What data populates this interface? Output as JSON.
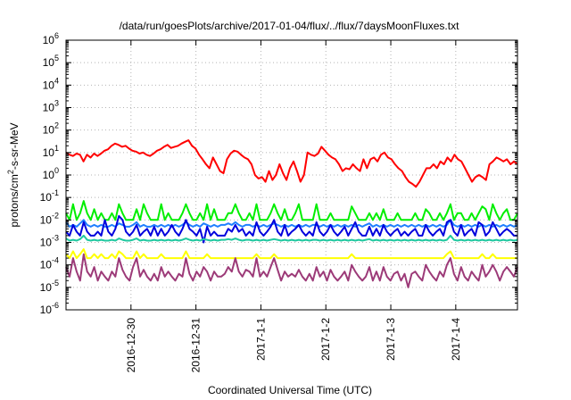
{
  "chart_data": {
    "type": "line",
    "title": "/data/run/goesPlots/archive/2017-01-04/flux/../flux/7daysMoonFluxes.txt",
    "xlabel": "Coordinated Universal Time (UTC)",
    "ylabel": "protons/cm²-s-sr-MeV",
    "ylabel_parts": {
      "pre": "protons/cm",
      "sup": "2",
      "post": "-s-sr-MeV"
    },
    "y_scale": "log",
    "ylim_exponent": [
      -6,
      6
    ],
    "y_ticks": [
      {
        "base": "10",
        "exp": "6"
      },
      {
        "base": "10",
        "exp": "5"
      },
      {
        "base": "10",
        "exp": "4"
      },
      {
        "base": "10",
        "exp": "3"
      },
      {
        "base": "10",
        "exp": "2"
      },
      {
        "base": "10",
        "exp": "1"
      },
      {
        "base": "10",
        "exp": "0"
      },
      {
        "base": "10",
        "exp": "-1"
      },
      {
        "base": "10",
        "exp": "-2"
      },
      {
        "base": "10",
        "exp": "-3"
      },
      {
        "base": "10",
        "exp": "-4"
      },
      {
        "base": "10",
        "exp": "-5"
      },
      {
        "base": "10",
        "exp": "-6"
      }
    ],
    "x_ticks": [
      "2016-12-30",
      "2016-12-31",
      "2017-1-1",
      "2017-1-2",
      "2017-1-3",
      "2017-1-4"
    ],
    "x_tick_days": [
      1,
      2,
      3,
      4,
      5,
      6
    ],
    "x_range_days": [
      0,
      6.95
    ],
    "grid": true,
    "series": [
      {
        "color": "#ff0000",
        "values": [
          10,
          8,
          7,
          9,
          8,
          4,
          8,
          6,
          9,
          7,
          9,
          12,
          14,
          20,
          25,
          22,
          18,
          20,
          15,
          12,
          11,
          9,
          10,
          8,
          7,
          9,
          12,
          14,
          18,
          22,
          16,
          18,
          20,
          25,
          30,
          35,
          20,
          15,
          8,
          5,
          3,
          2,
          6,
          3,
          1.5,
          1.2,
          5,
          9,
          12,
          11,
          8,
          6,
          5,
          3,
          1,
          0.7,
          0.8,
          0.5,
          1.5,
          0.6,
          1,
          3,
          1.2,
          0.6,
          2,
          4,
          1.5,
          0.5,
          1,
          10,
          8,
          7,
          9,
          18,
          12,
          8,
          6,
          5,
          3,
          1.5,
          2,
          1.8,
          3,
          2,
          1.5,
          5,
          2,
          5,
          6,
          4,
          8,
          10,
          6,
          5,
          3,
          2,
          1.5,
          0.8,
          0.5,
          0.4,
          0.3,
          0.5,
          1,
          2,
          2,
          3,
          2,
          4,
          3,
          6,
          4,
          8,
          5,
          4,
          2,
          1,
          0.5,
          0.8,
          1,
          0.8,
          0.6,
          3,
          4,
          6,
          5,
          4,
          5,
          3,
          4,
          3
        ]
      },
      {
        "color": "#00ee00",
        "values": [
          0.02,
          0.01,
          0.05,
          0.01,
          0.02,
          0.07,
          0.02,
          0.01,
          0.03,
          0.01,
          0.02,
          0.01,
          0.01,
          0.02,
          0.01,
          0.05,
          0.02,
          0.01,
          0.01,
          0.01,
          0.03,
          0.01,
          0.05,
          0.02,
          0.01,
          0.01,
          0.01,
          0.05,
          0.01,
          0.02,
          0.01,
          0.01,
          0.01,
          0.02,
          0.05,
          0.02,
          0.01,
          0.01,
          0.02,
          0.01,
          0.05,
          0.01,
          0.03,
          0.01,
          0.01,
          0.01,
          0.02,
          0.02,
          0.05,
          0.02,
          0.01,
          0.01,
          0.02,
          0.01,
          0.05,
          0.01,
          0.01,
          0.01,
          0.02,
          0.05,
          0.02,
          0.01,
          0.03,
          0.01,
          0.01,
          0.02,
          0.05,
          0.01,
          0.01,
          0.01,
          0.01,
          0.05,
          0.01,
          0.01,
          0.01,
          0.02,
          0.01,
          0.01,
          0.01,
          0.01,
          0.01,
          0.04,
          0.02,
          0.01,
          0.01,
          0.01,
          0.02,
          0.01,
          0.02,
          0.01,
          0.03,
          0.01,
          0.01,
          0.01,
          0.02,
          0.01,
          0.01,
          0.01,
          0.01,
          0.02,
          0.01,
          0.01,
          0.03,
          0.02,
          0.01,
          0.01,
          0.02,
          0.01,
          0.02,
          0.05,
          0.01,
          0.02,
          0.02,
          0.01,
          0.01,
          0.02,
          0.01,
          0.02,
          0.04,
          0.03,
          0.01,
          0.05,
          0.02,
          0.01,
          0.02,
          0.03,
          0.01,
          0.01,
          0.02
        ]
      },
      {
        "color": "#1e7fff",
        "values": [
          0.008,
          0.005,
          0.006,
          0.005,
          0.007,
          0.01,
          0.006,
          0.005,
          0.006,
          0.005,
          0.006,
          0.005,
          0.005,
          0.006,
          0.005,
          0.007,
          0.006,
          0.005,
          0.005,
          0.006,
          0.008,
          0.005,
          0.006,
          0.005,
          0.005,
          0.006,
          0.005,
          0.006,
          0.005,
          0.006,
          0.005,
          0.006,
          0.005,
          0.006,
          0.008,
          0.006,
          0.005,
          0.006,
          0.005,
          0.007,
          0.006,
          0.005,
          0.006,
          0.005,
          0.006,
          0.006,
          0.007,
          0.006,
          0.008,
          0.006,
          0.005,
          0.006,
          0.006,
          0.005,
          0.006,
          0.005,
          0.006,
          0.005,
          0.006,
          0.007,
          0.006,
          0.005,
          0.006,
          0.005,
          0.006,
          0.005,
          0.006,
          0.005,
          0.006,
          0.005,
          0.006,
          0.006,
          0.005,
          0.006,
          0.005,
          0.006,
          0.005,
          0.006,
          0.005,
          0.006,
          0.005,
          0.006,
          0.005,
          0.006,
          0.005,
          0.006,
          0.007,
          0.005,
          0.006,
          0.005,
          0.006,
          0.005,
          0.006,
          0.005,
          0.006,
          0.005,
          0.006,
          0.005,
          0.006,
          0.005,
          0.006,
          0.005,
          0.006,
          0.005,
          0.006,
          0.005,
          0.006,
          0.005,
          0.006,
          0.01,
          0.006,
          0.005,
          0.006,
          0.005,
          0.006,
          0.005,
          0.006,
          0.005,
          0.006,
          0.005,
          0.006,
          0.005,
          0.006,
          0.005,
          0.006,
          0.005,
          0.006,
          0.005,
          0.006
        ]
      },
      {
        "color": "#0000dd",
        "values": [
          0.003,
          0.002,
          0.006,
          0.003,
          0.002,
          0.008,
          0.003,
          0.002,
          0.002,
          0.003,
          0.002,
          0.01,
          0.003,
          0.002,
          0.004,
          0.015,
          0.01,
          0.003,
          0.002,
          0.003,
          0.006,
          0.002,
          0.003,
          0.004,
          0.002,
          0.005,
          0.002,
          0.004,
          0.002,
          0.003,
          0.006,
          0.003,
          0.002,
          0.004,
          0.01,
          0.004,
          0.003,
          0.002,
          0.004,
          0.001,
          0.005,
          0.002,
          0.003,
          0.002,
          0.002,
          0.002,
          0.004,
          0.003,
          0.006,
          0.003,
          0.004,
          0.002,
          0.003,
          0.002,
          0.008,
          0.003,
          0.002,
          0.003,
          0.005,
          0.01,
          0.003,
          0.002,
          0.006,
          0.002,
          0.003,
          0.004,
          0.006,
          0.003,
          0.002,
          0.003,
          0.002,
          0.008,
          0.003,
          0.002,
          0.003,
          0.006,
          0.003,
          0.002,
          0.003,
          0.005,
          0.002,
          0.004,
          0.008,
          0.003,
          0.002,
          0.002,
          0.005,
          0.002,
          0.004,
          0.002,
          0.006,
          0.003,
          0.002,
          0.003,
          0.004,
          0.002,
          0.003,
          0.002,
          0.003,
          0.004,
          0.002,
          0.002,
          0.006,
          0.003,
          0.002,
          0.003,
          0.004,
          0.002,
          0.008,
          0.01,
          0.003,
          0.002,
          0.006,
          0.002,
          0.003,
          0.004,
          0.002,
          0.008,
          0.006,
          0.002,
          0.003,
          0.008,
          0.004,
          0.002,
          0.003,
          0.004,
          0.003,
          0.002,
          0.002
        ]
      },
      {
        "color": "#20c8a0",
        "values": [
          0.0015,
          0.0012,
          0.0013,
          0.0012,
          0.0014,
          0.002,
          0.0013,
          0.0012,
          0.0013,
          0.0012,
          0.0013,
          0.0012,
          0.0012,
          0.0013,
          0.0012,
          0.0015,
          0.0013,
          0.0012,
          0.0012,
          0.0013,
          0.0015,
          0.0012,
          0.0013,
          0.0012,
          0.0012,
          0.0013,
          0.0012,
          0.0013,
          0.0012,
          0.0013,
          0.0012,
          0.0013,
          0.0012,
          0.0013,
          0.0015,
          0.0013,
          0.0012,
          0.0013,
          0.0012,
          0.0014,
          0.0013,
          0.0012,
          0.0013,
          0.0012,
          0.0013,
          0.0013,
          0.0014,
          0.0013,
          0.0015,
          0.0013,
          0.0012,
          0.0013,
          0.0013,
          0.0012,
          0.0013,
          0.0012,
          0.0013,
          0.0012,
          0.0013,
          0.0014,
          0.0013,
          0.0012,
          0.0013,
          0.0012,
          0.0013,
          0.0012,
          0.0013,
          0.0012,
          0.0013,
          0.0012,
          0.0013,
          0.0013,
          0.0012,
          0.0013,
          0.0012,
          0.0013,
          0.0012,
          0.0013,
          0.0012,
          0.0013,
          0.0012,
          0.0013,
          0.0012,
          0.0013,
          0.0012,
          0.0013,
          0.0014,
          0.0012,
          0.0013,
          0.0012,
          0.0013,
          0.0012,
          0.0013,
          0.0012,
          0.0013,
          0.0012,
          0.0013,
          0.0012,
          0.0013,
          0.0012,
          0.0013,
          0.0012,
          0.0013,
          0.0012,
          0.0013,
          0.0012,
          0.0013,
          0.0012,
          0.0013,
          0.002,
          0.0013,
          0.0012,
          0.0013,
          0.0012,
          0.0013,
          0.0012,
          0.0013,
          0.0012,
          0.0013,
          0.0012,
          0.0013,
          0.0012,
          0.0013,
          0.0012,
          0.0013,
          0.0012,
          0.0013,
          0.0012,
          0.0013
        ]
      },
      {
        "color": "#ffff00",
        "values": [
          0.0003,
          0.0002,
          0.0004,
          0.0002,
          0.0003,
          0.0005,
          0.0002,
          0.0002,
          0.0003,
          0.0002,
          0.0003,
          0.0002,
          0.0002,
          0.0003,
          0.0002,
          0.0004,
          0.0003,
          0.0002,
          0.0002,
          0.0002,
          0.0004,
          0.0002,
          0.0003,
          0.0002,
          0.0002,
          0.0002,
          0.0002,
          0.0003,
          0.0002,
          0.0002,
          0.0002,
          0.0002,
          0.0002,
          0.0002,
          0.0004,
          0.0002,
          0.0002,
          0.0002,
          0.0002,
          0.0002,
          0.0003,
          0.0002,
          0.0002,
          0.0002,
          0.0002,
          0.0002,
          0.0002,
          0.0002,
          0.0002,
          0.0002,
          0.0002,
          0.0002,
          0.0002,
          0.0002,
          0.0003,
          0.0002,
          0.0002,
          0.0002,
          0.0002,
          0.0003,
          0.0002,
          0.0002,
          0.0002,
          0.0002,
          0.0002,
          0.0002,
          0.0002,
          0.0002,
          0.0002,
          0.0002,
          0.0002,
          0.0002,
          0.0002,
          0.0002,
          0.0002,
          0.0002,
          0.0002,
          0.0002,
          0.0002,
          0.0002,
          0.0002,
          0.0003,
          0.0002,
          0.0002,
          0.0002,
          0.0002,
          0.0002,
          0.0002,
          0.0002,
          0.0002,
          0.0002,
          0.0002,
          0.0002,
          0.0002,
          0.0002,
          0.0002,
          0.0002,
          0.0002,
          0.0002,
          0.0002,
          0.0002,
          0.0002,
          0.0002,
          0.0002,
          0.0002,
          0.0002,
          0.0002,
          0.0002,
          0.0003,
          0.0004,
          0.0002,
          0.0002,
          0.0002,
          0.0002,
          0.0002,
          0.0002,
          0.0002,
          0.0002,
          0.0003,
          0.0002,
          0.0002,
          0.0003,
          0.0002,
          0.0002,
          0.0002,
          0.0002,
          0.0002,
          0.0002,
          0.0002
        ]
      },
      {
        "color": "#9c3a78",
        "values": [
          8e-05,
          3e-05,
          0.0002,
          5e-05,
          2e-05,
          0.0003,
          5e-05,
          3e-05,
          8e-05,
          2e-05,
          5e-05,
          3e-05,
          2e-05,
          5e-05,
          3e-05,
          0.0002,
          6e-05,
          3e-05,
          2e-05,
          8e-05,
          0.0002,
          3e-05,
          6e-05,
          3e-05,
          2e-05,
          4e-05,
          2e-05,
          8e-05,
          3e-05,
          5e-05,
          3e-05,
          2e-05,
          4e-05,
          3e-05,
          0.0002,
          4e-05,
          2e-05,
          5e-05,
          3e-05,
          8e-05,
          5e-05,
          2e-05,
          5e-05,
          3e-05,
          3e-05,
          4e-05,
          8e-05,
          5e-05,
          0.0002,
          5e-05,
          3e-05,
          6e-05,
          5e-05,
          3e-05,
          0.0002,
          3e-05,
          5e-05,
          3e-05,
          8e-05,
          0.0002,
          6e-05,
          2e-05,
          5e-05,
          3e-05,
          4e-05,
          3e-05,
          6e-05,
          3e-05,
          2e-05,
          4e-05,
          2e-05,
          8e-05,
          3e-05,
          5e-05,
          2e-05,
          6e-05,
          3e-05,
          2e-05,
          3e-05,
          5e-05,
          2e-05,
          0.0001,
          5e-05,
          3e-05,
          2e-05,
          3e-05,
          8e-05,
          2e-05,
          5e-05,
          2e-05,
          8e-05,
          3e-05,
          2e-05,
          4e-05,
          5e-05,
          2e-05,
          4e-05,
          1e-05,
          4e-05,
          5e-05,
          3e-05,
          2e-05,
          0.0001,
          5e-05,
          3e-05,
          2e-05,
          5e-05,
          3e-05,
          0.0001,
          0.0002,
          4e-05,
          2e-05,
          8e-05,
          3e-05,
          2e-05,
          5e-05,
          3e-05,
          2e-05,
          0.0001,
          3e-05,
          5e-05,
          0.0001,
          5e-05,
          2e-05,
          5e-05,
          8e-05,
          5e-05,
          3e-05,
          8e-05
        ]
      }
    ]
  }
}
